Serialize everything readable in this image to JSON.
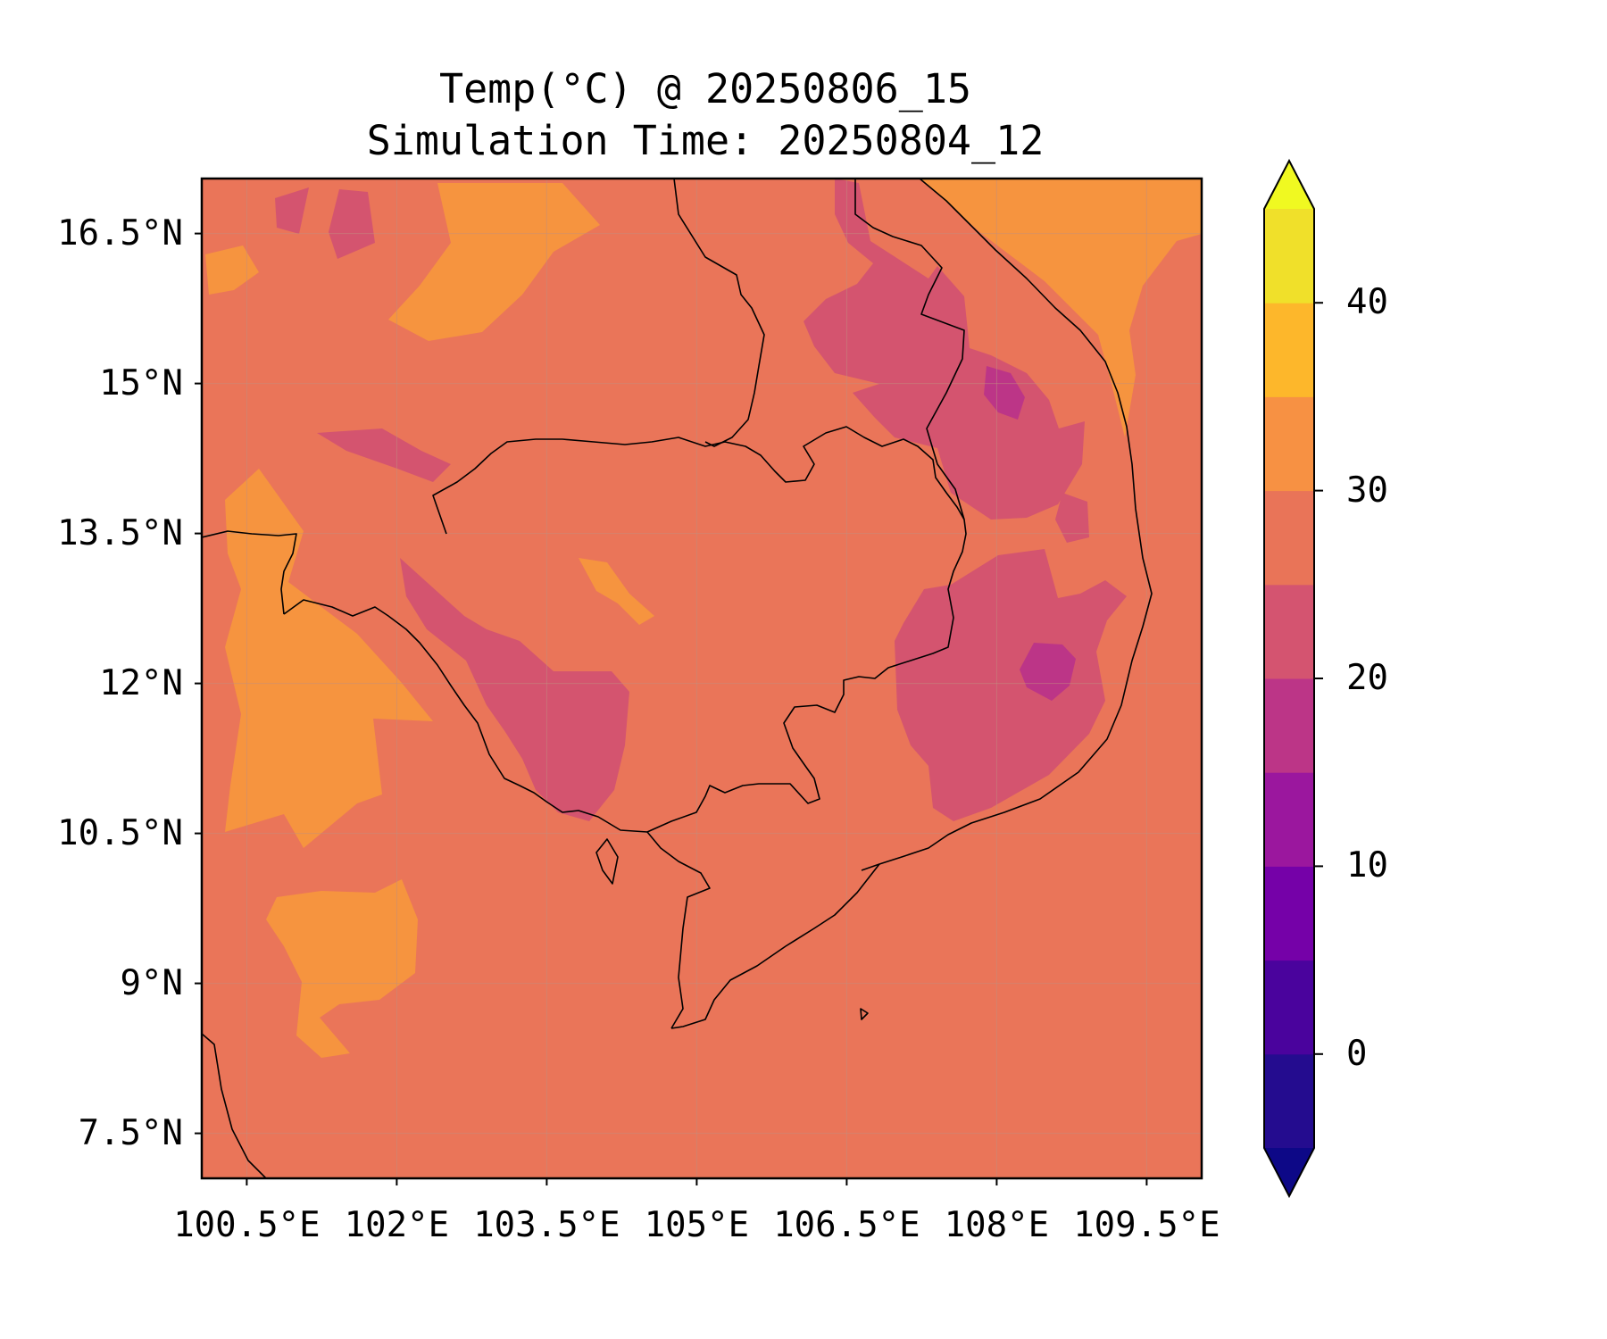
{
  "title": "Temp(°C) @ 20250806_15",
  "subtitle": "Simulation Time: 20250804_12",
  "axes": {
    "lat_ticks": [
      "16.5°N",
      "15°N",
      "13.5°N",
      "12°N",
      "10.5°N",
      "9°N",
      "7.5°N"
    ],
    "lon_ticks": [
      "100.5°E",
      "102°E",
      "103.5°E",
      "105°E",
      "106.5°E",
      "108°E",
      "109.5°E"
    ],
    "lat_range": [
      7.05,
      17.05
    ],
    "lon_range": [
      100.05,
      110.05
    ],
    "grid": true
  },
  "colorbar": {
    "levels": [
      -5,
      0,
      5,
      10,
      15,
      20,
      25,
      30,
      35,
      40,
      45
    ],
    "colors": [
      "#240c8f",
      "#4a039d",
      "#7501a8",
      "#9b179e",
      "#bc3587",
      "#d45470",
      "#e97458",
      "#f79143",
      "#fdb72b",
      "#f0e02a"
    ],
    "under_color": "#0d0887",
    "over_color": "#f0f921",
    "tick_labels": [
      "0",
      "10",
      "20",
      "30",
      "40"
    ],
    "extend": "both"
  },
  "field": {
    "background_color": "#ea7559",
    "warm_color": "#f6943f",
    "cool_color": "#d4546f",
    "coolest_color": "#bc3587"
  }
}
